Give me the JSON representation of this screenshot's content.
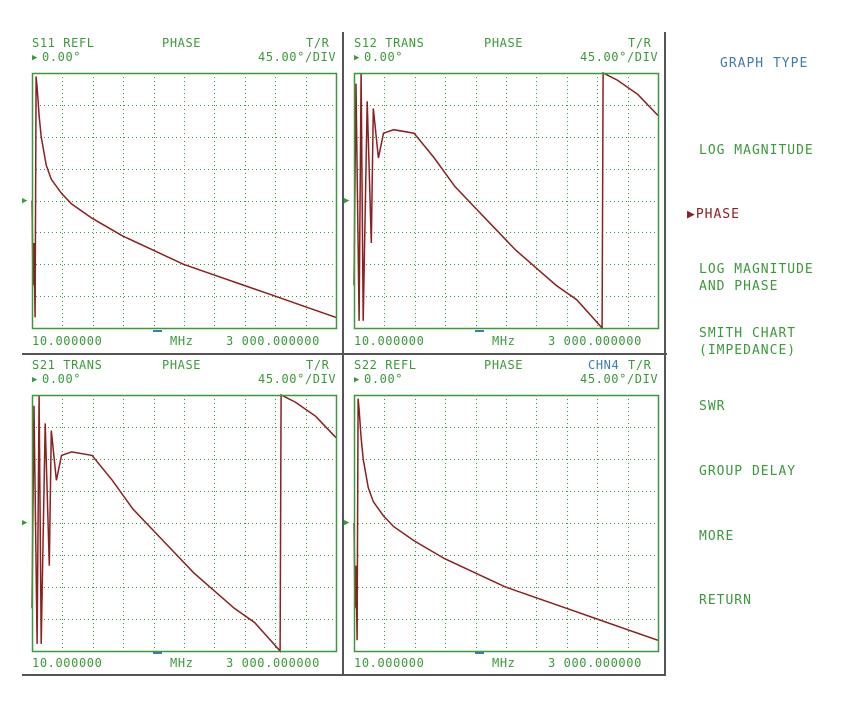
{
  "colors": {
    "text": "#3a9a3a",
    "grid": "#3a9a3a",
    "trace": "#8b2020",
    "accent_blue": "#3b7fa8",
    "frame": "#555555"
  },
  "panels": [
    {
      "id": "s11",
      "param": "S11 REFL",
      "format": "PHASE",
      "channel": "",
      "mode": "T/R",
      "ref": "0.00°",
      "scale": "45.00°/DIV",
      "start": "10.000000",
      "unit": "MHz",
      "stop": "3 000.000000"
    },
    {
      "id": "s12",
      "param": "S12 TRANS",
      "format": "PHASE",
      "channel": "",
      "mode": "T/R",
      "ref": "0.00°",
      "scale": "45.00°/DIV",
      "start": "10.000000",
      "unit": "MHz",
      "stop": "3 000.000000"
    },
    {
      "id": "s21",
      "param": "S21 TRANS",
      "format": "PHASE",
      "channel": "",
      "mode": "T/R",
      "ref": "0.00°",
      "scale": "45.00°/DIV",
      "start": "10.000000",
      "unit": "MHz",
      "stop": "3 000.000000"
    },
    {
      "id": "s22",
      "param": "S22 REFL",
      "format": "PHASE",
      "channel": "CHN4",
      "mode": "T/R",
      "ref": "0.00°",
      "scale": "45.00°/DIV",
      "start": "10.000000",
      "unit": "MHz",
      "stop": "3 000.000000"
    }
  ],
  "menu": {
    "title": "GRAPH TYPE",
    "items": [
      {
        "label": "LOG MAGNITUDE",
        "active": false
      },
      {
        "label": "PHASE",
        "active": true,
        "marker": "▶"
      },
      {
        "label": "LOG MAGNITUDE\nAND PHASE",
        "active": false
      },
      {
        "label": "SMITH CHART\n(IMPEDANCE)",
        "active": false
      },
      {
        "label": "SWR",
        "active": false
      },
      {
        "label": "GROUP DELAY",
        "active": false
      },
      {
        "label": "MORE",
        "active": false
      },
      {
        "label": "RETURN",
        "active": false
      }
    ]
  },
  "chart_data": [
    {
      "type": "line",
      "title": "S11 REFL PHASE",
      "xlabel": "MHz",
      "ylabel": "Phase (°)",
      "x_range": [
        10,
        3000
      ],
      "ylim": [
        -180,
        180
      ],
      "y_divisions": 8,
      "x_divisions": 10,
      "scale_per_div": 45,
      "reference": 0,
      "grid": true,
      "series": [
        {
          "name": "S11",
          "x": [
            10,
            20,
            30,
            40,
            50,
            60,
            80,
            100,
            150,
            200,
            300,
            400,
            600,
            900,
            1200,
            1500,
            1800,
            2100,
            2400,
            2700,
            3000
          ],
          "y": [
            0,
            -120,
            -60,
            -165,
            175,
            160,
            120,
            90,
            50,
            30,
            10,
            -5,
            -25,
            -50,
            -70,
            -90,
            -105,
            -120,
            -135,
            -150,
            -165
          ]
        }
      ]
    },
    {
      "type": "line",
      "title": "S12 TRANS PHASE",
      "xlabel": "MHz",
      "ylabel": "Phase (°)",
      "x_range": [
        10,
        3000
      ],
      "ylim": [
        -180,
        180
      ],
      "y_divisions": 8,
      "x_divisions": 10,
      "scale_per_div": 45,
      "reference": 0,
      "grid": true,
      "series": [
        {
          "name": "S12",
          "x": [
            10,
            30,
            60,
            80,
            100,
            140,
            180,
            200,
            250,
            300,
            400,
            600,
            800,
            1000,
            1200,
            1400,
            1600,
            1800,
            2000,
            2200,
            2450,
            2460,
            2600,
            2800,
            3000
          ],
          "y": [
            -120,
            165,
            -170,
            180,
            -170,
            140,
            -60,
            130,
            60,
            95,
            100,
            95,
            60,
            20,
            -10,
            -40,
            -70,
            -95,
            -120,
            -140,
            -180,
            180,
            170,
            150,
            120
          ]
        }
      ]
    },
    {
      "type": "line",
      "title": "S21 TRANS PHASE",
      "xlabel": "MHz",
      "ylabel": "Phase (°)",
      "x_range": [
        10,
        3000
      ],
      "ylim": [
        -180,
        180
      ],
      "y_divisions": 8,
      "x_divisions": 10,
      "scale_per_div": 45,
      "reference": 0,
      "grid": true,
      "series": [
        {
          "name": "S21",
          "x": [
            10,
            30,
            60,
            80,
            100,
            140,
            180,
            200,
            250,
            300,
            400,
            600,
            800,
            1000,
            1200,
            1400,
            1600,
            1800,
            2000,
            2200,
            2450,
            2460,
            2600,
            2800,
            3000
          ],
          "y": [
            -120,
            165,
            -170,
            180,
            -170,
            140,
            -60,
            130,
            60,
            95,
            100,
            95,
            60,
            20,
            -10,
            -40,
            -70,
            -95,
            -120,
            -140,
            -180,
            180,
            170,
            150,
            120
          ]
        }
      ]
    },
    {
      "type": "line",
      "title": "S22 REFL PHASE",
      "xlabel": "MHz",
      "ylabel": "Phase (°)",
      "x_range": [
        10,
        3000
      ],
      "ylim": [
        -180,
        180
      ],
      "y_divisions": 8,
      "x_divisions": 10,
      "scale_per_div": 45,
      "reference": 0,
      "grid": true,
      "series": [
        {
          "name": "S22",
          "x": [
            10,
            20,
            30,
            40,
            50,
            60,
            80,
            100,
            150,
            200,
            300,
            400,
            600,
            900,
            1200,
            1500,
            1800,
            2100,
            2400,
            2700,
            3000
          ],
          "y": [
            0,
            -120,
            -60,
            -165,
            175,
            160,
            120,
            90,
            50,
            30,
            10,
            -5,
            -25,
            -50,
            -70,
            -90,
            -105,
            -120,
            -135,
            -150,
            -165
          ]
        }
      ]
    }
  ]
}
